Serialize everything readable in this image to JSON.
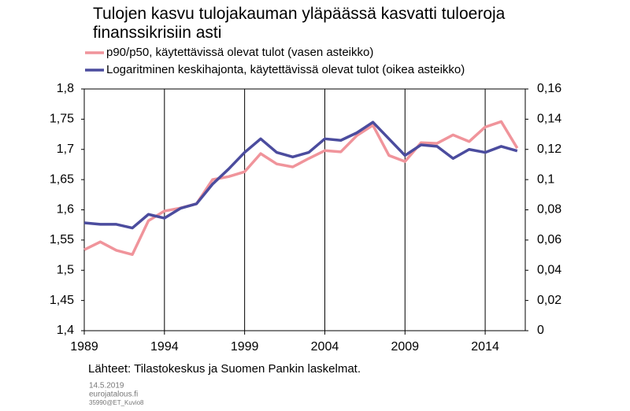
{
  "chart_data": {
    "type": "line",
    "title": "Tulojen kasvu tulojakauman yläpäässä kasvatti tuloeroja finanssikrisiin asti",
    "x": [
      1989,
      1990,
      1991,
      1992,
      1993,
      1994,
      1995,
      1996,
      1997,
      1998,
      1999,
      2000,
      2001,
      2002,
      2003,
      2004,
      2005,
      2006,
      2007,
      2008,
      2009,
      2010,
      2011,
      2012,
      2013,
      2014,
      2015,
      2016
    ],
    "series": [
      {
        "name": "p90/p50, käytettävissä olevat tulot  (vasen asteikko)",
        "color": "#f0949b",
        "values": [
          1.534,
          1.547,
          1.533,
          1.526,
          1.582,
          1.598,
          1.603,
          1.61,
          1.65,
          1.655,
          1.663,
          1.693,
          1.676,
          1.671,
          1.685,
          1.698,
          1.696,
          1.723,
          1.74,
          1.69,
          1.68,
          1.711,
          1.71,
          1.724,
          1.713,
          1.737,
          1.746,
          1.702
        ]
      },
      {
        "name": "Logaritminen keskihajonta, käytettävissä olevat tulot  (oikea asteikko)",
        "color": "#4b4c9e",
        "axis": "y2",
        "values": [
          0.0714,
          0.0704,
          0.0704,
          0.068,
          0.077,
          0.0745,
          0.081,
          0.084,
          0.097,
          0.107,
          0.118,
          0.127,
          0.118,
          0.115,
          0.118,
          0.127,
          0.126,
          0.131,
          0.138,
          0.127,
          0.116,
          0.123,
          0.122,
          0.114,
          0.12,
          0.118,
          0.122,
          0.119
        ]
      }
    ],
    "xlim": [
      1989,
      2016.5
    ],
    "xticks": [
      1989,
      1994,
      1999,
      2004,
      2009,
      2014
    ],
    "ylim": [
      1.4,
      1.8
    ],
    "yticks": [
      {
        "value": 1.4,
        "label": "1,4"
      },
      {
        "value": 1.45,
        "label": "1,45"
      },
      {
        "value": 1.5,
        "label": "1,5"
      },
      {
        "value": 1.55,
        "label": "1,55"
      },
      {
        "value": 1.6,
        "label": "1,6"
      },
      {
        "value": 1.65,
        "label": "1,65"
      },
      {
        "value": 1.7,
        "label": "1,7"
      },
      {
        "value": 1.75,
        "label": "1,75"
      },
      {
        "value": 1.8,
        "label": "1,8"
      }
    ],
    "y2lim": [
      0,
      0.16
    ],
    "y2ticks": [
      0,
      {
        "value": 0.02,
        "label": "0,02"
      },
      {
        "value": 0.04,
        "label": "0,04"
      },
      {
        "value": 0.06,
        "label": "0,06"
      },
      {
        "value": 0.08,
        "label": "0,08"
      },
      {
        "value": 0.1,
        "label": "0,1"
      },
      {
        "value": 0.12,
        "label": "0,12"
      },
      {
        "value": 0.14,
        "label": "0,14"
      },
      {
        "value": 0.16,
        "label": "0,16"
      }
    ],
    "grid": "x",
    "source": "Lähteet: Tilastokeskus ja Suomen Pankin laskelmat.",
    "footer": [
      "14.5.2019",
      "eurojatalous.fi",
      "35990@ET_Kuvio8"
    ]
  }
}
